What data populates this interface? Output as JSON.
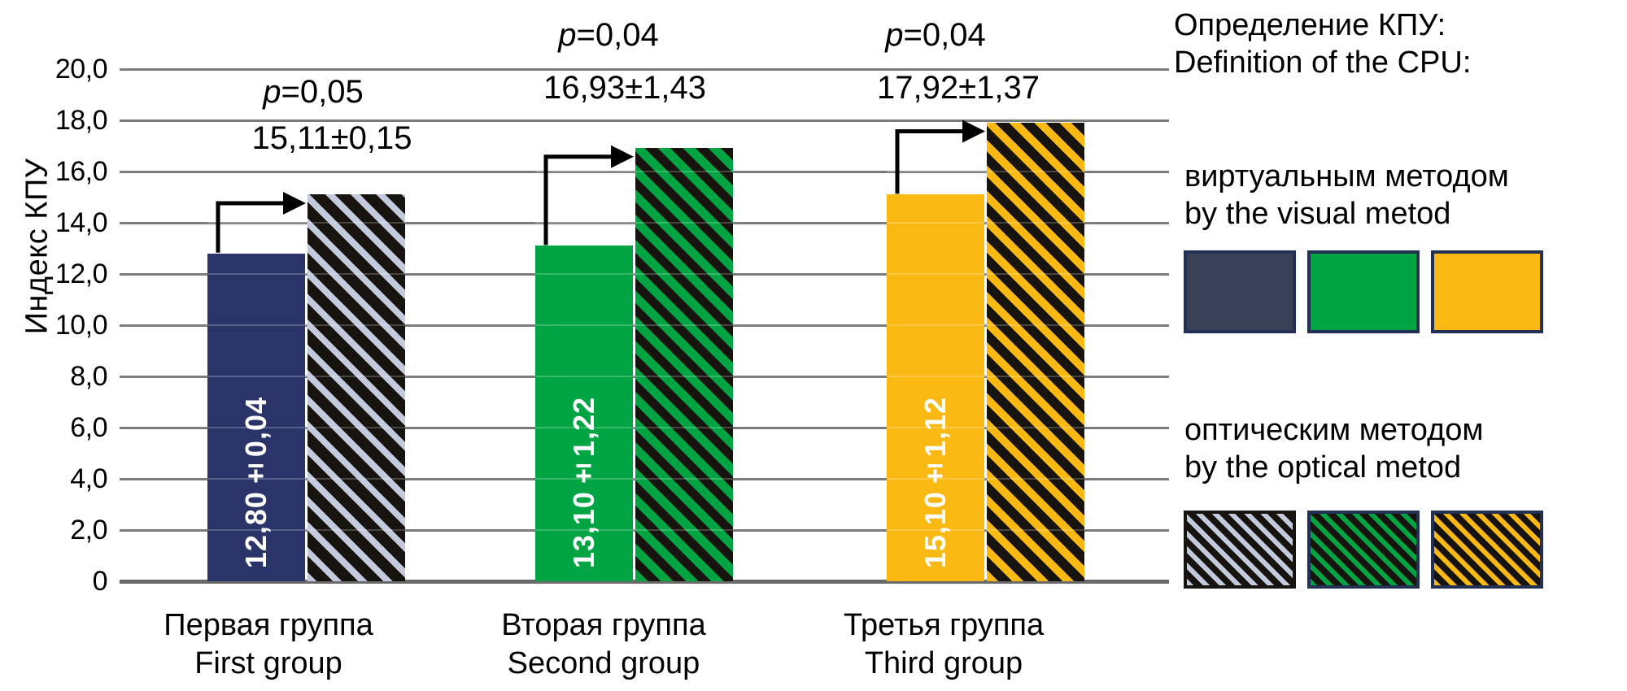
{
  "chart_data": {
    "type": "bar",
    "ylabel": "Индекс КПУ",
    "ylim": [
      0,
      20
    ],
    "ytick_step": 2,
    "grid": "horizontal",
    "legend_position": "right",
    "yticks": [
      {
        "label": "20,0",
        "value": 20
      },
      {
        "label": "18,0",
        "value": 18
      },
      {
        "label": "16,0",
        "value": 16
      },
      {
        "label": "14,0",
        "value": 14
      },
      {
        "label": "12,0",
        "value": 12
      },
      {
        "label": "10,0",
        "value": 10
      },
      {
        "label": "8,0",
        "value": 8
      },
      {
        "label": "6,0",
        "value": 6
      },
      {
        "label": "4,0",
        "value": 4
      },
      {
        "label": "2,0",
        "value": 2
      },
      {
        "label": "0",
        "value": 0
      }
    ],
    "series": [
      {
        "name": "виртуальным методом / by the visual metod",
        "style": "solid"
      },
      {
        "name": "оптическим методом / by the optical metod",
        "style": "hatched"
      }
    ],
    "groups": [
      {
        "label_ru": "Первая группа",
        "label_en": "First group",
        "p_label": "p=0,05",
        "solid": {
          "value": 12.8,
          "label": "12,80±0,04",
          "color": "#2b3468"
        },
        "hatched": {
          "value": 15.11,
          "label": "15,11±0,15",
          "base": "#17130e",
          "stripe": "#c3cade",
          "stripe_w": 8
        }
      },
      {
        "label_ru": "Вторая группа",
        "label_en": "Second group",
        "p_label": "p=0,04",
        "solid": {
          "value": 13.1,
          "label": "13,10±1,22",
          "color": "#00a443"
        },
        "hatched": {
          "value": 16.93,
          "label": "16,93±1,43",
          "base": "#17130e",
          "stripe": "#00a443",
          "stripe_w": 11
        }
      },
      {
        "label_ru": "Третья группа",
        "label_en": "Third group",
        "p_label": "p=0,04",
        "solid": {
          "value": 15.1,
          "label": "15,10±1,12",
          "color": "#f9b812"
        },
        "hatched": {
          "value": 17.92,
          "label": "17,92±1,37",
          "base": "#17130e",
          "stripe": "#f9b812",
          "stripe_w": 10
        }
      }
    ]
  },
  "legend": {
    "title_ru": "Определение КПУ:",
    "title_en": "Definition of the CPU:",
    "visual": {
      "label_ru": "виртуальным методом",
      "label_en": "by the visual metod",
      "swatches": [
        "#3a4156",
        "#00a443",
        "#f9b812"
      ]
    },
    "optical": {
      "label_ru": "оптическим методом",
      "label_en": "by the optical metod",
      "swatches": [
        {
          "base": "#17130e",
          "stripe": "#c3cade"
        },
        {
          "base": "#17130e",
          "stripe": "#00a443"
        },
        {
          "base": "#17130e",
          "stripe": "#f9b812"
        }
      ]
    },
    "swatch_border": "#233056",
    "hatched_first_border": "#17130e"
  },
  "colors": {
    "gridline": "#7c7c7c",
    "baseline": "#6a6a6a",
    "arrow": "#000000",
    "bar_value_text": "#ffffff",
    "annotation_text": "#000000"
  }
}
